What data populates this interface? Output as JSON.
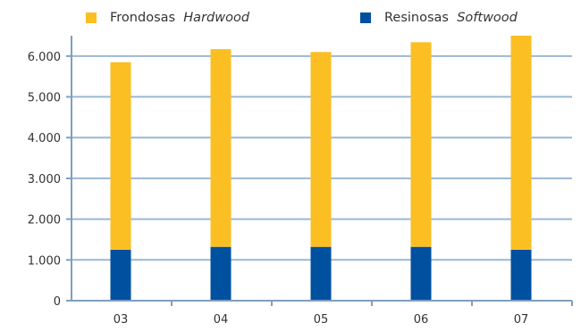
{
  "legend": [
    {
      "name_main": "Frondosas",
      "name_alt": "Hardwood",
      "color": "#fbbf24"
    },
    {
      "name_main": "Resinosas",
      "name_alt": "Softwood",
      "color": "#0050a0"
    }
  ],
  "chart_data": {
    "type": "bar",
    "stacked": true,
    "categories": [
      "03",
      "04",
      "05",
      "06",
      "07"
    ],
    "series": [
      {
        "name": "Resinosas Softwood",
        "values": [
          1250,
          1320,
          1320,
          1320,
          1250
        ],
        "color": "#0050a0"
      },
      {
        "name": "Frondosas Hardwood",
        "values": [
          4600,
          4850,
          4780,
          5020,
          5250
        ],
        "color": "#fbbf24"
      }
    ],
    "yticks": [
      "0",
      "1.000",
      "2.000",
      "3.000",
      "4.000",
      "5.000",
      "6.000"
    ],
    "ylim": [
      0,
      6500
    ],
    "grid": true,
    "legend_position": "top",
    "title": "",
    "xlabel": "",
    "ylabel": ""
  }
}
